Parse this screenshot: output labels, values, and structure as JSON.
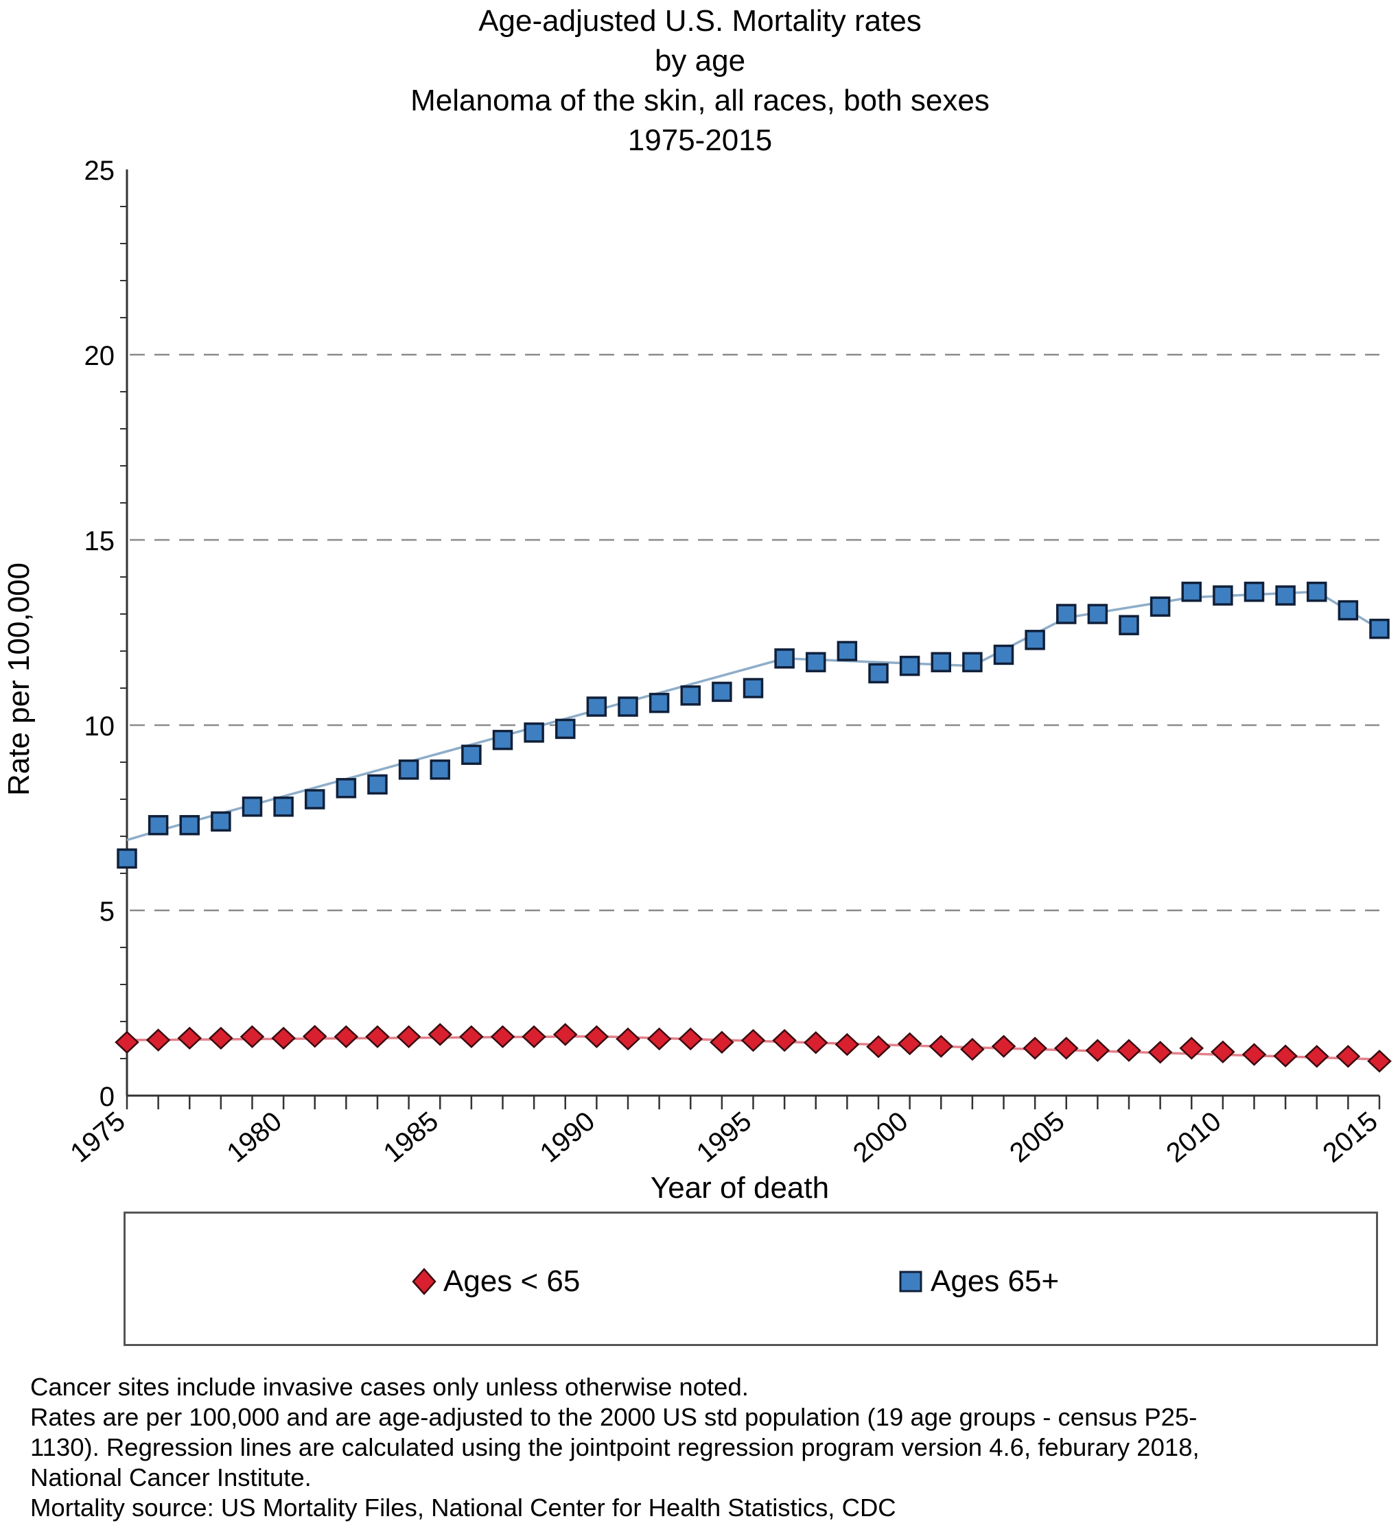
{
  "chart_data": {
    "type": "line",
    "title": [
      "Age-adjusted U.S. Mortality rates",
      "by age",
      "Melanoma of the skin, all races, both sexes",
      "1975-2015"
    ],
    "xlabel": "Year of death",
    "ylabel": "Rate per 100,000",
    "xlim": [
      1975,
      2015
    ],
    "ylim": [
      0,
      25
    ],
    "yticks": [
      0,
      5,
      10,
      15,
      20,
      25
    ],
    "ytick_labels": [
      "0",
      "5",
      "10",
      "15",
      "20",
      "25"
    ],
    "xticks_labeled": [
      1975,
      1980,
      1985,
      1990,
      1995,
      2000,
      2005,
      2010,
      2015
    ],
    "xtick_labels": [
      "1975",
      "1980",
      "1985",
      "1990",
      "1995",
      "2000",
      "2005",
      "2010",
      "2015"
    ],
    "grid": "horizontal dashed at 5, 10, 15, 20",
    "legend_placement": "bottom",
    "x": [
      1975,
      1976,
      1977,
      1978,
      1979,
      1980,
      1981,
      1982,
      1983,
      1984,
      1985,
      1986,
      1987,
      1988,
      1989,
      1990,
      1991,
      1992,
      1993,
      1994,
      1995,
      1996,
      1997,
      1998,
      1999,
      2000,
      2001,
      2002,
      2003,
      2004,
      2005,
      2006,
      2007,
      2008,
      2009,
      2010,
      2011,
      2012,
      2013,
      2014,
      2015
    ],
    "series": [
      {
        "name": "Ages < 65",
        "marker": "diamond",
        "color": "#d9202f",
        "line_color": "#e3808a",
        "values": [
          1.44,
          1.5,
          1.55,
          1.55,
          1.59,
          1.55,
          1.6,
          1.59,
          1.59,
          1.59,
          1.65,
          1.59,
          1.59,
          1.59,
          1.65,
          1.59,
          1.53,
          1.53,
          1.53,
          1.44,
          1.49,
          1.49,
          1.43,
          1.38,
          1.32,
          1.4,
          1.33,
          1.25,
          1.33,
          1.28,
          1.28,
          1.22,
          1.22,
          1.17,
          1.28,
          1.18,
          1.11,
          1.07,
          1.06,
          1.06,
          0.93
        ],
        "regression": [
          [
            1975,
            1.5
          ],
          [
            1990,
            1.6
          ],
          [
            2015,
            0.98
          ]
        ]
      },
      {
        "name": "Ages 65+",
        "marker": "square",
        "color": "#3e7fc1",
        "line_color": "#8eadc9",
        "values": [
          6.4,
          7.3,
          7.3,
          7.4,
          7.8,
          7.8,
          8.0,
          8.3,
          8.4,
          8.8,
          8.8,
          9.2,
          9.6,
          9.8,
          9.9,
          10.5,
          10.5,
          10.6,
          10.8,
          10.9,
          11.0,
          11.8,
          11.7,
          12.0,
          11.4,
          11.6,
          11.7,
          11.7,
          11.9,
          12.3,
          13.0,
          13.0,
          12.7,
          13.2,
          13.6,
          13.5,
          13.6,
          13.5,
          13.6,
          13.1,
          12.6
        ],
        "regression": [
          [
            1975,
            6.9
          ],
          [
            1976,
            7.15
          ],
          [
            1996,
            11.8
          ],
          [
            2002,
            11.6
          ],
          [
            2005,
            12.9
          ],
          [
            2009,
            13.45
          ],
          [
            2013,
            13.6
          ],
          [
            2015,
            12.6
          ]
        ]
      }
    ]
  },
  "legend": {
    "items": [
      {
        "label": "Ages < 65"
      },
      {
        "label": "Ages 65+"
      }
    ]
  },
  "footnotes": [
    "Cancer sites include invasive cases only unless otherwise noted.",
    "Rates are per 100,000 and are age-adjusted to the 2000 US std population (19 age groups - census P25-",
    "1130). Regression lines are calculated using the jointpoint regression program version 4.6, feburary 2018,",
    "National Cancer Institute.",
    "Mortality source: US Mortality Files, National Center for Health Statistics, CDC"
  ],
  "colors": {
    "axis": "#333333",
    "grid": "#8a8a8a",
    "marker_border": "#10203a"
  }
}
